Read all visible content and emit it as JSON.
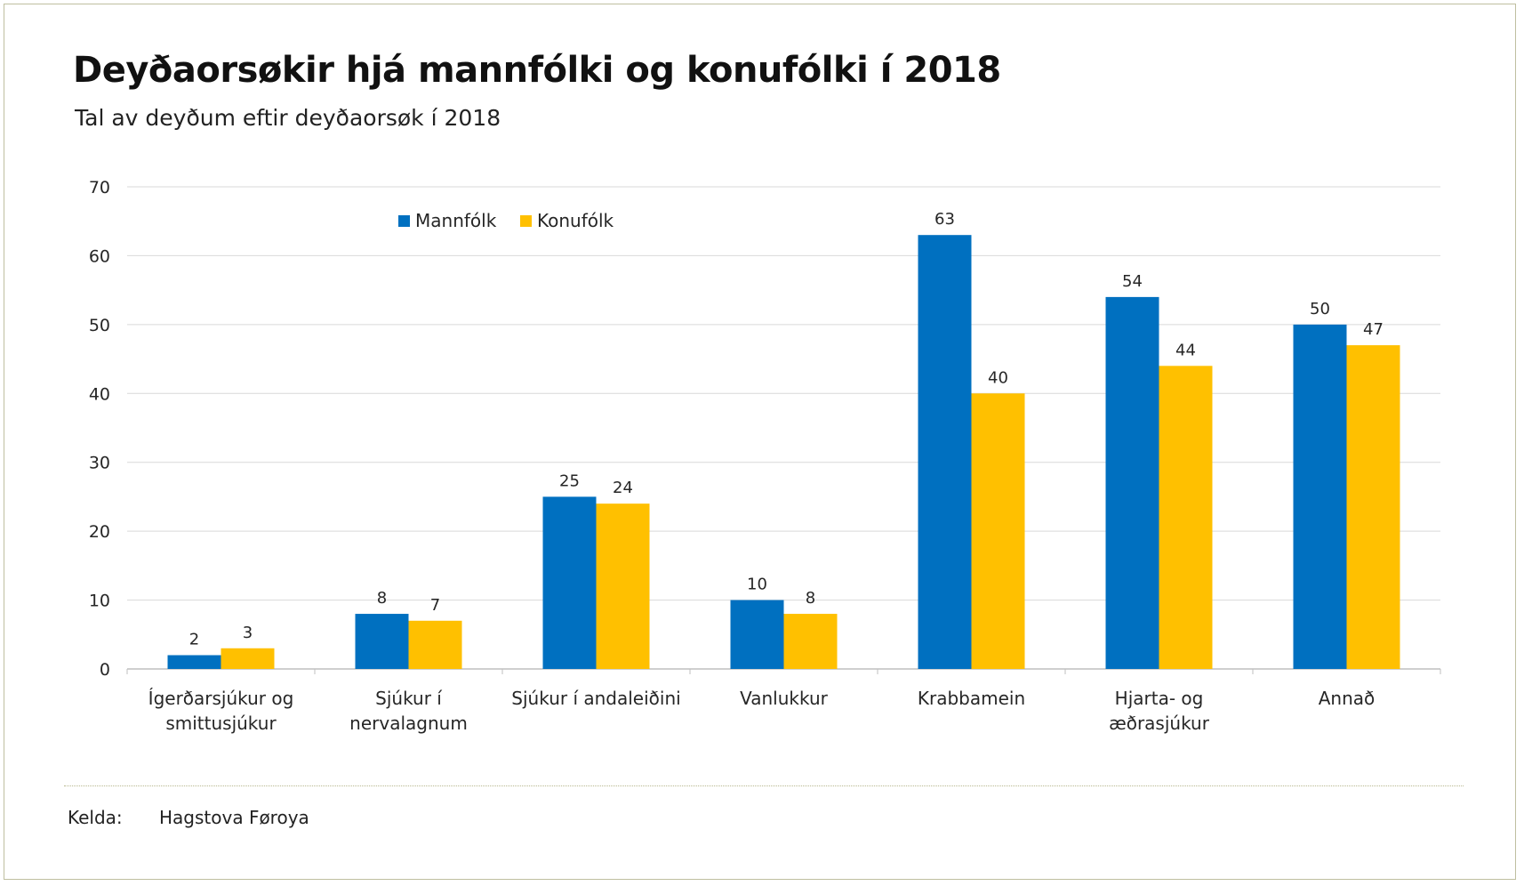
{
  "header": {
    "title": "Deyðaorsøkir hjá mannfólki og konufólki í 2018",
    "subtitle": "Tal av deyðum eftir deyðaorsøk í 2018"
  },
  "footer": {
    "source_label": "Kelda:",
    "source_value": "Hagstova Føroya"
  },
  "colors": {
    "mannfolk": "#0070c0",
    "konufolk": "#ffc000",
    "grid": "#d9d9d9",
    "axis": "#bfbfbf",
    "text": "#262626"
  },
  "chart_data": {
    "type": "bar",
    "title": "Deyðaorsøkir hjá mannfólki og konufólki í 2018",
    "subtitle": "Tal av deyðum eftir deyðaorsøk í 2018",
    "xlabel": "",
    "ylabel": "",
    "ylim": [
      0,
      70
    ],
    "yticks": [
      0,
      10,
      20,
      30,
      40,
      50,
      60,
      70
    ],
    "grid": true,
    "legend_position": "top-left",
    "categories": [
      [
        "Ígerðarsjúkur og",
        "smittusjúkur"
      ],
      [
        "Sjúkur í",
        "nervalagnum"
      ],
      [
        "Sjúkur í andaleiðini"
      ],
      [
        "Vanlukkur"
      ],
      [
        "Krabbamein"
      ],
      [
        "Hjarta- og",
        "æðrasjúkur"
      ],
      [
        "Annað"
      ]
    ],
    "series": [
      {
        "name": "Mannfólk",
        "values": [
          2,
          8,
          25,
          10,
          63,
          54,
          50
        ]
      },
      {
        "name": "Konufólk",
        "values": [
          3,
          7,
          24,
          8,
          40,
          44,
          47
        ]
      }
    ]
  }
}
